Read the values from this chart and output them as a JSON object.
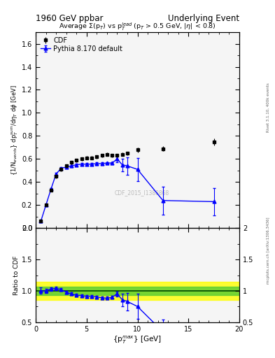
{
  "title_left": "1960 GeV ppbar",
  "title_right": "Underlying Event",
  "plot_title": "Average $\\Sigma$(p$_T$) vs p$_T^{lead}$ (p$_T$ > 0.5 GeV, |$\\eta$| < 0.8)",
  "watermark": "CDF_2015_I1388868",
  "ylabel_main": "{1/N$_{events}$} dp$_T^{sum}$/d$\\eta_T$ d$\\phi$ [GeV]",
  "ylabel_ratio": "Ratio to CDF",
  "xlabel": "{p$_T^{max}$} [GeV]",
  "right_label_top": "Rivet 3.1.10, 400k events",
  "right_label_bottom": "mcplots.cern.ch [arXiv:1306.3436]",
  "cdf_x": [
    0.5,
    1.0,
    1.5,
    2.0,
    2.5,
    3.0,
    3.5,
    4.0,
    4.5,
    5.0,
    5.5,
    6.0,
    6.5,
    7.0,
    7.5,
    8.0,
    8.5,
    9.0,
    10.0,
    12.5,
    17.5
  ],
  "cdf_y": [
    0.06,
    0.2,
    0.33,
    0.45,
    0.51,
    0.54,
    0.57,
    0.59,
    0.6,
    0.61,
    0.61,
    0.62,
    0.63,
    0.64,
    0.63,
    0.63,
    0.64,
    0.65,
    0.68,
    0.69,
    0.75
  ],
  "cdf_yerr": [
    0.005,
    0.01,
    0.01,
    0.015,
    0.015,
    0.015,
    0.015,
    0.015,
    0.015,
    0.015,
    0.015,
    0.015,
    0.015,
    0.015,
    0.015,
    0.015,
    0.015,
    0.015,
    0.02,
    0.02,
    0.03
  ],
  "mc_x": [
    0.5,
    1.0,
    1.5,
    2.0,
    2.5,
    3.0,
    3.5,
    4.0,
    4.5,
    5.0,
    5.5,
    6.0,
    6.5,
    7.0,
    7.5,
    8.0,
    8.5,
    9.0,
    10.0,
    12.5,
    17.5
  ],
  "mc_y": [
    0.06,
    0.2,
    0.34,
    0.47,
    0.52,
    0.53,
    0.54,
    0.55,
    0.555,
    0.555,
    0.555,
    0.56,
    0.56,
    0.565,
    0.565,
    0.6,
    0.55,
    0.54,
    0.51,
    0.24,
    0.23
  ],
  "mc_yerr": [
    0.003,
    0.005,
    0.008,
    0.01,
    0.01,
    0.01,
    0.01,
    0.01,
    0.01,
    0.01,
    0.01,
    0.01,
    0.01,
    0.01,
    0.01,
    0.025,
    0.055,
    0.075,
    0.1,
    0.12,
    0.12
  ],
  "ratio_mc_x": [
    0.5,
    1.0,
    1.5,
    2.0,
    2.5,
    3.0,
    3.5,
    4.0,
    4.5,
    5.0,
    5.5,
    6.0,
    6.5,
    7.0,
    7.5,
    8.0,
    8.5,
    9.0,
    10.0,
    12.5,
    17.5
  ],
  "ratio_mc_y": [
    1.0,
    1.0,
    1.03,
    1.04,
    1.02,
    0.98,
    0.95,
    0.93,
    0.925,
    0.91,
    0.91,
    0.903,
    0.889,
    0.883,
    0.897,
    0.952,
    0.859,
    0.831,
    0.75,
    0.347,
    0.307
  ],
  "ratio_mc_yerr": [
    0.05,
    0.03,
    0.03,
    0.03,
    0.025,
    0.025,
    0.022,
    0.022,
    0.022,
    0.022,
    0.022,
    0.022,
    0.022,
    0.022,
    0.025,
    0.04,
    0.1,
    0.14,
    0.2,
    0.2,
    0.15
  ],
  "xlim": [
    0,
    20
  ],
  "ylim_main": [
    0,
    1.7
  ],
  "ylim_ratio": [
    0.5,
    2.0
  ],
  "cdf_color": "black",
  "mc_color": "blue",
  "bg_color": "#f5f5f5"
}
